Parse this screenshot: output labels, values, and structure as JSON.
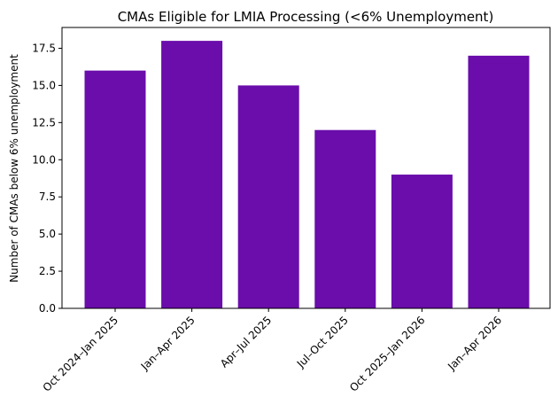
{
  "chart_data": {
    "type": "bar",
    "title": "CMAs Eligible for LMIA Processing (<6% Unemployment)",
    "xlabel": "",
    "ylabel": "Number of CMAs below 6% unemployment",
    "categories": [
      "Oct 2024–Jan 2025",
      "Jan–Apr 2025",
      "Apr–Jul 2025",
      "Jul–Oct 2025",
      "Oct 2025–Jan 2026",
      "Jan–Apr 2026"
    ],
    "values": [
      16,
      18,
      15,
      12,
      9,
      17
    ],
    "ylim": [
      0,
      18.9
    ],
    "yticks": [
      "0.0",
      "2.5",
      "5.0",
      "7.5",
      "10.0",
      "12.5",
      "15.0",
      "17.5"
    ],
    "grid": false,
    "bar_color": "#6a0dab"
  }
}
